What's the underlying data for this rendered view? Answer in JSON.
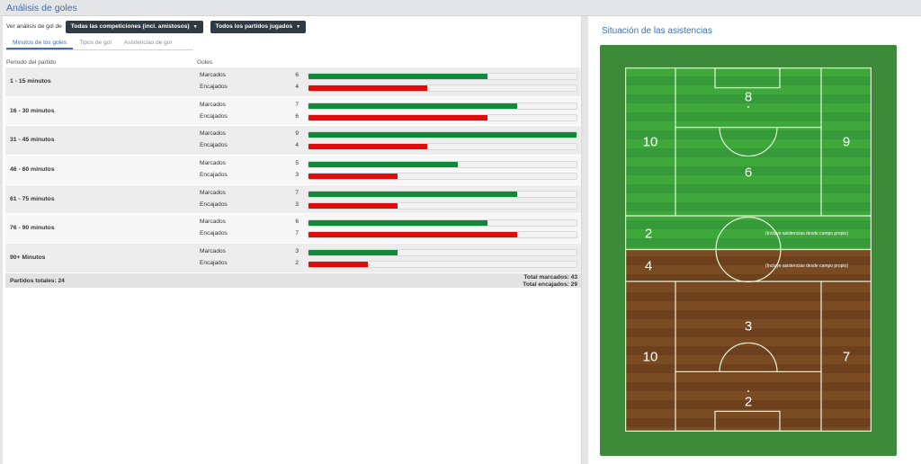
{
  "page": {
    "title": "Análisis de goles"
  },
  "filters": {
    "label": "Ver análisis de gol de",
    "competition": "Todas las competiciones (incl. amistosos)",
    "separator": "-",
    "matches": "Todos los partidos jugados"
  },
  "tabs": [
    {
      "label": "Minutos de los goles",
      "active": true
    },
    {
      "label": "Tipos de gol",
      "active": false
    },
    {
      "label": "Asistencias de gol",
      "active": false
    }
  ],
  "table": {
    "col_period": "Periodo del partido",
    "col_goals": "Goles",
    "scored_label": "Marcados",
    "conceded_label": "Encajados",
    "max_value": 9,
    "colors": {
      "scored": "#0f8a3a",
      "conceded": "#e00b0b"
    },
    "rows": [
      {
        "period": "1 - 15 minutos",
        "scored": 6,
        "conceded": 4
      },
      {
        "period": "16 - 30 minutos",
        "scored": 7,
        "conceded": 6
      },
      {
        "period": "31 - 45 minutos",
        "scored": 9,
        "conceded": 4
      },
      {
        "period": "46 - 60 minutos",
        "scored": 5,
        "conceded": 3
      },
      {
        "period": "61 - 75 minutos",
        "scored": 7,
        "conceded": 3
      },
      {
        "period": "76 - 90 minutos",
        "scored": 6,
        "conceded": 7
      },
      {
        "period": "90+ Minutos",
        "scored": 3,
        "conceded": 2
      }
    ],
    "total_matches": "Partidos totales: 24",
    "total_scored": "Total marcados: 43",
    "total_conceded": "Total encajados: 29"
  },
  "assists": {
    "title": "Situación de las asistencias",
    "colors": {
      "grass": "#3fa83b",
      "dirt": "#7a4a23",
      "outer": "#3d8a3a"
    },
    "own_half_note": "(Incluye asistencias desde campo propio)",
    "zones": {
      "attack_box": "8",
      "attack_left_wing": "10",
      "attack_right_wing": "9",
      "attack_center": "6",
      "attack_midfield": "2",
      "defense_midfield": "4",
      "defense_center": "3",
      "defense_left_wing": "10",
      "defense_right_wing": "7",
      "defense_box": "2"
    }
  }
}
